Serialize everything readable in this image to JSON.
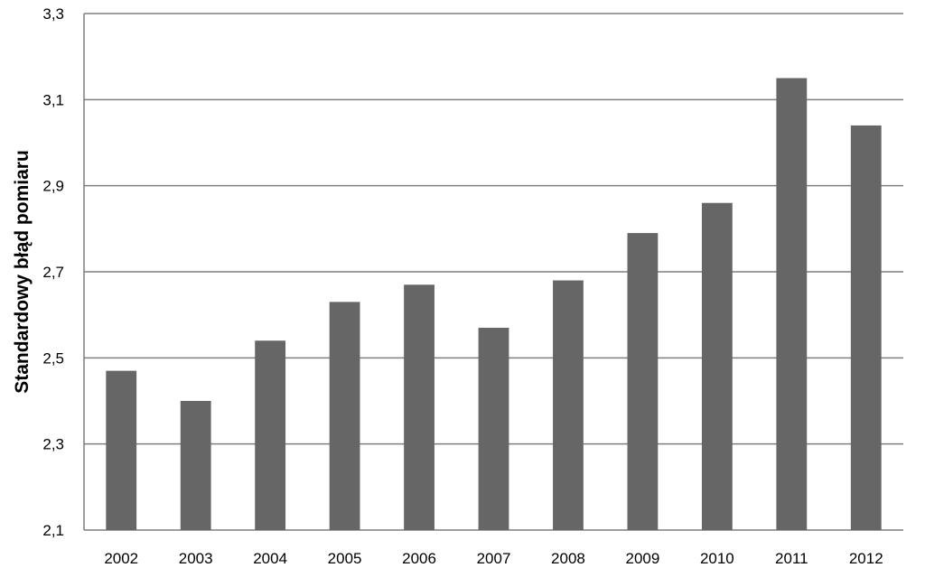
{
  "chart_data": {
    "type": "bar",
    "title": "",
    "xlabel": "",
    "ylabel": "Standardowy błąd pomiaru",
    "categories": [
      "2002",
      "2003",
      "2004",
      "2005",
      "2006",
      "2007",
      "2008",
      "2009",
      "2010",
      "2011",
      "2012"
    ],
    "values": [
      2.47,
      2.4,
      2.54,
      2.63,
      2.67,
      2.57,
      2.68,
      2.79,
      2.86,
      3.15,
      3.04
    ],
    "ylim": [
      2.1,
      3.3
    ],
    "yticks": [
      2.1,
      2.3,
      2.5,
      2.7,
      2.9,
      3.1,
      3.3
    ],
    "ytick_labels": [
      "2,1",
      "2,3",
      "2,5",
      "2,7",
      "2,9",
      "3,1",
      "3,3"
    ],
    "grid": "horizontal",
    "legend": "none",
    "bar_color": "#666666",
    "grid_color": "#7f7f7f"
  }
}
